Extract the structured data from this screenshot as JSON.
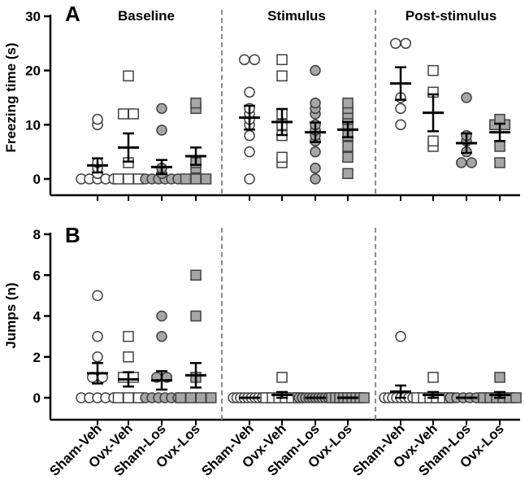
{
  "chart_data": [
    {
      "type": "scatter",
      "panel_label": "A",
      "ylabel": "Freezing time (s)",
      "ylim": [
        0,
        30
      ],
      "yticks": [
        "0",
        "10",
        "20",
        "30"
      ],
      "phases": [
        {
          "name": "Baseline",
          "groups": [
            {
              "name": "Sham-Veh",
              "mean": 2.5,
              "sem": 1.3,
              "points": [
                0,
                0,
                0,
                0,
                0,
                1,
                2,
                3,
                10,
                11
              ]
            },
            {
              "name": "Ovx-Veh",
              "mean": 5.8,
              "sem": 2.6,
              "points": [
                0,
                0,
                0,
                3,
                12,
                12,
                19
              ]
            },
            {
              "name": "Sham-Los",
              "mean": 2.2,
              "sem": 1.3,
              "points": [
                0,
                0,
                0,
                0,
                0,
                0,
                1,
                2,
                9,
                13
              ]
            },
            {
              "name": "Ovx-Los",
              "mean": 4.2,
              "sem": 1.6,
              "points": [
                0,
                0,
                0,
                2,
                3,
                13,
                14
              ]
            }
          ]
        },
        {
          "name": "Stimulus",
          "groups": [
            {
              "name": "Sham-Veh",
              "mean": 11.3,
              "sem": 2.2,
              "points": [
                0,
                5,
                8,
                10,
                11,
                12,
                13,
                16,
                22,
                22
              ]
            },
            {
              "name": "Ovx-Veh",
              "mean": 10.5,
              "sem": 2.4,
              "points": [
                3,
                4,
                8,
                10,
                12,
                19,
                22
              ]
            },
            {
              "name": "Sham-Los",
              "mean": 8.6,
              "sem": 1.8,
              "points": [
                0,
                2,
                5,
                7,
                8,
                9,
                10,
                12,
                13,
                14,
                20
              ]
            },
            {
              "name": "Ovx-Los",
              "mean": 9.1,
              "sem": 1.4,
              "points": [
                1,
                4,
                6,
                8,
                10,
                11,
                12,
                13,
                14
              ]
            }
          ]
        },
        {
          "name": "Post-stimulus",
          "groups": [
            {
              "name": "Sham-Veh",
              "mean": 17.6,
              "sem": 3.0,
              "points": [
                10,
                13,
                15,
                25,
                25
              ]
            },
            {
              "name": "Ovx-Veh",
              "mean": 12.2,
              "sem": 3.4,
              "points": [
                6,
                7,
                16,
                20
              ]
            },
            {
              "name": "Sham-Los",
              "mean": 6.6,
              "sem": 1.8,
              "points": [
                3,
                3,
                5,
                7,
                8,
                15
              ]
            },
            {
              "name": "Ovx-Los",
              "mean": 8.6,
              "sem": 1.6,
              "points": [
                3,
                6,
                10,
                10,
                11
              ]
            }
          ]
        }
      ]
    },
    {
      "type": "scatter",
      "panel_label": "B",
      "ylabel": "Jumps (n)",
      "ylim": [
        0,
        8
      ],
      "yticks": [
        "0",
        "2",
        "4",
        "6",
        "8"
      ],
      "phases": [
        {
          "name": "Baseline",
          "groups": [
            {
              "name": "Sham-Veh",
              "mean": 1.2,
              "sem": 0.5,
              "points": [
                0,
                0,
                0,
                0,
                0,
                1,
                1,
                2,
                3,
                5
              ]
            },
            {
              "name": "Ovx-Veh",
              "mean": 0.9,
              "sem": 0.35,
              "points": [
                0,
                0,
                0,
                1,
                1,
                2,
                3
              ]
            },
            {
              "name": "Sham-Los",
              "mean": 0.85,
              "sem": 0.45,
              "points": [
                0,
                0,
                0,
                0,
                0,
                0,
                1,
                1,
                3,
                4
              ]
            },
            {
              "name": "Ovx-Los",
              "mean": 1.1,
              "sem": 0.6,
              "points": [
                0,
                0,
                0,
                0,
                1,
                4,
                6
              ]
            }
          ]
        },
        {
          "name": "Stimulus",
          "groups": [
            {
              "name": "Sham-Veh",
              "mean": 0,
              "sem": 0,
              "points": [
                0,
                0,
                0,
                0,
                0,
                0,
                0,
                0,
                0,
                0
              ]
            },
            {
              "name": "Ovx-Veh",
              "mean": 0.14,
              "sem": 0.14,
              "points": [
                0,
                0,
                0,
                0,
                0,
                0,
                1
              ]
            },
            {
              "name": "Sham-Los",
              "mean": 0,
              "sem": 0,
              "points": [
                0,
                0,
                0,
                0,
                0,
                0,
                0,
                0,
                0,
                0,
                0
              ]
            },
            {
              "name": "Ovx-Los",
              "mean": 0,
              "sem": 0,
              "points": [
                0,
                0,
                0,
                0,
                0,
                0,
                0,
                0,
                0
              ]
            }
          ]
        },
        {
          "name": "Post-stimulus",
          "groups": [
            {
              "name": "Sham-Veh",
              "mean": 0.3,
              "sem": 0.3,
              "points": [
                0,
                0,
                0,
                0,
                0,
                0,
                0,
                0,
                0,
                3
              ]
            },
            {
              "name": "Ovx-Veh",
              "mean": 0.14,
              "sem": 0.14,
              "points": [
                0,
                0,
                0,
                0,
                0,
                0,
                1
              ]
            },
            {
              "name": "Sham-Los",
              "mean": 0,
              "sem": 0,
              "points": [
                0,
                0,
                0,
                0,
                0,
                0
              ]
            },
            {
              "name": "Ovx-Los",
              "mean": 0.14,
              "sem": 0.14,
              "points": [
                0,
                0,
                0,
                0,
                0,
                0,
                1
              ]
            }
          ]
        }
      ]
    }
  ],
  "groups_style": {
    "Sham-Veh": {
      "shape": "circle",
      "fill": "#ffffff"
    },
    "Ovx-Veh": {
      "shape": "square",
      "fill": "#ffffff"
    },
    "Sham-Los": {
      "shape": "circle",
      "fill": "#a6a6a6"
    },
    "Ovx-Los": {
      "shape": "square",
      "fill": "#a6a6a6"
    }
  },
  "x_categories": [
    "Sham-Veh",
    "Ovx-Veh",
    "Sham-Los",
    "Ovx-Los",
    "Sham-Veh",
    "Ovx-Veh",
    "Sham-Los",
    "Ovx-Los",
    "Sham-Veh",
    "Ovx-Veh",
    "Sham-Los",
    "Ovx-Los"
  ],
  "colors": {
    "axis": "#000000",
    "divider": "#8c8c8c",
    "marker_edge": "#404040",
    "filled": "#a6a6a6"
  }
}
